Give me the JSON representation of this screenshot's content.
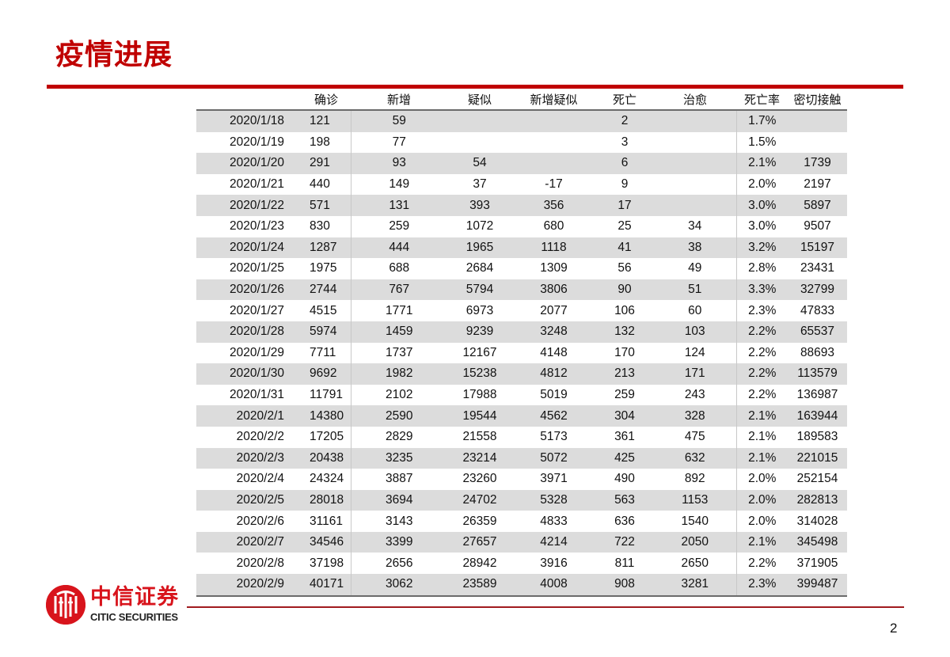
{
  "page": {
    "title": "疫情进展",
    "page_number": "2",
    "brand_color": "#c00000"
  },
  "logo": {
    "cn": "中信证券",
    "en": "CITIC SECURITIES",
    "icon": "citic-logo-icon"
  },
  "table": {
    "headers": [
      "",
      "确诊",
      "新增",
      "疑似",
      "新增疑似",
      "死亡",
      "治愈",
      "死亡率",
      "密切接触"
    ],
    "rows": [
      [
        "2020/1/18",
        "121",
        "59",
        "",
        "",
        "2",
        "",
        "1.7%",
        ""
      ],
      [
        "2020/1/19",
        "198",
        "77",
        "",
        "",
        "3",
        "",
        "1.5%",
        ""
      ],
      [
        "2020/1/20",
        "291",
        "93",
        "54",
        "",
        "6",
        "",
        "2.1%",
        "1739"
      ],
      [
        "2020/1/21",
        "440",
        "149",
        "37",
        "-17",
        "9",
        "",
        "2.0%",
        "2197"
      ],
      [
        "2020/1/22",
        "571",
        "131",
        "393",
        "356",
        "17",
        "",
        "3.0%",
        "5897"
      ],
      [
        "2020/1/23",
        "830",
        "259",
        "1072",
        "680",
        "25",
        "34",
        "3.0%",
        "9507"
      ],
      [
        "2020/1/24",
        "1287",
        "444",
        "1965",
        "1118",
        "41",
        "38",
        "3.2%",
        "15197"
      ],
      [
        "2020/1/25",
        "1975",
        "688",
        "2684",
        "1309",
        "56",
        "49",
        "2.8%",
        "23431"
      ],
      [
        "2020/1/26",
        "2744",
        "767",
        "5794",
        "3806",
        "90",
        "51",
        "3.3%",
        "32799"
      ],
      [
        "2020/1/27",
        "4515",
        "1771",
        "6973",
        "2077",
        "106",
        "60",
        "2.3%",
        "47833"
      ],
      [
        "2020/1/28",
        "5974",
        "1459",
        "9239",
        "3248",
        "132",
        "103",
        "2.2%",
        "65537"
      ],
      [
        "2020/1/29",
        "7711",
        "1737",
        "12167",
        "4148",
        "170",
        "124",
        "2.2%",
        "88693"
      ],
      [
        "2020/1/30",
        "9692",
        "1982",
        "15238",
        "4812",
        "213",
        "171",
        "2.2%",
        "113579"
      ],
      [
        "2020/1/31",
        "11791",
        "2102",
        "17988",
        "5019",
        "259",
        "243",
        "2.2%",
        "136987"
      ],
      [
        "2020/2/1",
        "14380",
        "2590",
        "19544",
        "4562",
        "304",
        "328",
        "2.1%",
        "163944"
      ],
      [
        "2020/2/2",
        "17205",
        "2829",
        "21558",
        "5173",
        "361",
        "475",
        "2.1%",
        "189583"
      ],
      [
        "2020/2/3",
        "20438",
        "3235",
        "23214",
        "5072",
        "425",
        "632",
        "2.1%",
        "221015"
      ],
      [
        "2020/2/4",
        "24324",
        "3887",
        "23260",
        "3971",
        "490",
        "892",
        "2.0%",
        "252154"
      ],
      [
        "2020/2/5",
        "28018",
        "3694",
        "24702",
        "5328",
        "563",
        "1153",
        "2.0%",
        "282813"
      ],
      [
        "2020/2/6",
        "31161",
        "3143",
        "26359",
        "4833",
        "636",
        "1540",
        "2.0%",
        "314028"
      ],
      [
        "2020/2/7",
        "34546",
        "3399",
        "27657",
        "4214",
        "722",
        "2050",
        "2.1%",
        "345498"
      ],
      [
        "2020/2/8",
        "37198",
        "2656",
        "28942",
        "3916",
        "811",
        "2650",
        "2.2%",
        "371905"
      ],
      [
        "2020/2/9",
        "40171",
        "3062",
        "23589",
        "4008",
        "908",
        "3281",
        "2.3%",
        "399487"
      ]
    ]
  }
}
